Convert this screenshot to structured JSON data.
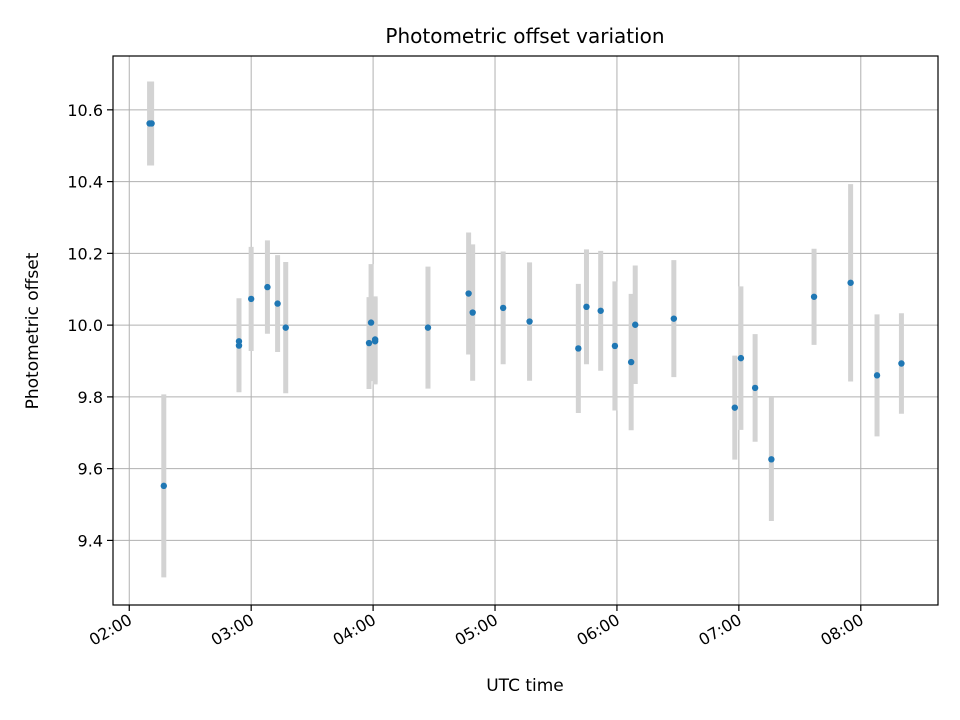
{
  "chart_data": {
    "type": "scatter",
    "title": "Photometric offset variation",
    "xlabel": "UTC time",
    "ylabel": "Photometric offset",
    "x_tick_labels": [
      "02:00",
      "03:00",
      "04:00",
      "05:00",
      "06:00",
      "07:00",
      "08:00"
    ],
    "y_tick_labels": [
      "9.4",
      "9.6",
      "9.8",
      "10.0",
      "10.2",
      "10.4",
      "10.6"
    ],
    "xlim": [
      "01:52",
      "08:38"
    ],
    "ylim": [
      9.22,
      10.75
    ],
    "grid": true,
    "colors": {
      "points": "#1f77b4",
      "error_bars": "#d3d3d3",
      "grid": "#b0b0b0"
    },
    "points": [
      {
        "x": "02:10",
        "y": 10.562,
        "err": 0.117
      },
      {
        "x": "02:11",
        "y": 10.562,
        "err": 0.117
      },
      {
        "x": "02:17",
        "y": 9.552,
        "err": 0.255
      },
      {
        "x": "02:54",
        "y": 9.943,
        "err": 0.13
      },
      {
        "x": "02:54",
        "y": 9.955,
        "err": 0.12
      },
      {
        "x": "03:00",
        "y": 10.073,
        "err": 0.145
      },
      {
        "x": "03:08",
        "y": 10.106,
        "err": 0.13
      },
      {
        "x": "03:13",
        "y": 10.06,
        "err": 0.135
      },
      {
        "x": "03:17",
        "y": 9.993,
        "err": 0.183
      },
      {
        "x": "03:58",
        "y": 9.95,
        "err": 0.128
      },
      {
        "x": "03:59",
        "y": 10.007,
        "err": 0.163
      },
      {
        "x": "04:01",
        "y": 9.955,
        "err": 0.12
      },
      {
        "x": "04:01",
        "y": 9.96,
        "err": 0.12
      },
      {
        "x": "04:27",
        "y": 9.993,
        "err": 0.17
      },
      {
        "x": "04:47",
        "y": 10.088,
        "err": 0.17
      },
      {
        "x": "04:49",
        "y": 10.035,
        "err": 0.19
      },
      {
        "x": "05:04",
        "y": 10.048,
        "err": 0.157
      },
      {
        "x": "05:17",
        "y": 10.01,
        "err": 0.165
      },
      {
        "x": "05:41",
        "y": 9.935,
        "err": 0.18
      },
      {
        "x": "05:45",
        "y": 10.051,
        "err": 0.16
      },
      {
        "x": "05:52",
        "y": 10.04,
        "err": 0.167
      },
      {
        "x": "05:59",
        "y": 9.942,
        "err": 0.18
      },
      {
        "x": "06:07",
        "y": 9.897,
        "err": 0.19
      },
      {
        "x": "06:09",
        "y": 10.001,
        "err": 0.165
      },
      {
        "x": "06:28",
        "y": 10.018,
        "err": 0.163
      },
      {
        "x": "06:58",
        "y": 9.77,
        "err": 0.145
      },
      {
        "x": "07:01",
        "y": 9.908,
        "err": 0.2
      },
      {
        "x": "07:08",
        "y": 9.825,
        "err": 0.15
      },
      {
        "x": "07:16",
        "y": 9.626,
        "err": 0.172
      },
      {
        "x": "07:37",
        "y": 10.079,
        "err": 0.134
      },
      {
        "x": "07:55",
        "y": 10.118,
        "err": 0.275
      },
      {
        "x": "08:08",
        "y": 9.86,
        "err": 0.17
      },
      {
        "x": "08:20",
        "y": 9.893,
        "err": 0.14
      }
    ]
  }
}
